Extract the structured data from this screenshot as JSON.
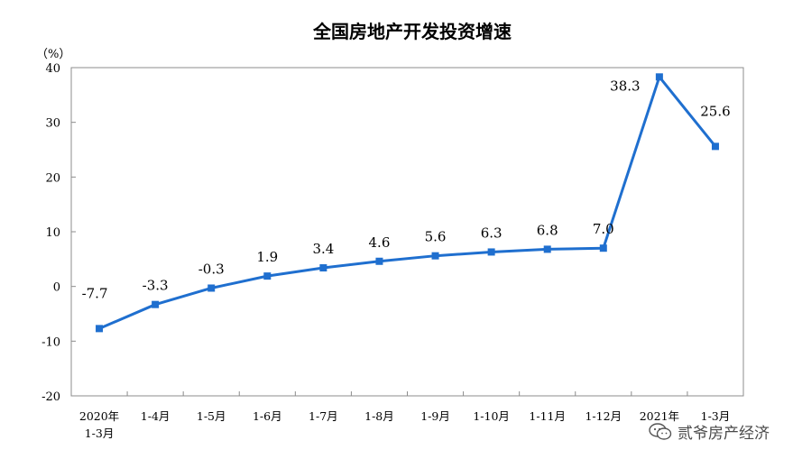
{
  "chart_data": {
    "type": "line",
    "title": "全国房地产开发投资增速",
    "unit": "（%）",
    "categories": [
      [
        "2020年",
        "1-3月"
      ],
      [
        "1-4月"
      ],
      [
        "1-5月"
      ],
      [
        "1-6月"
      ],
      [
        "1-7月"
      ],
      [
        "1-8月"
      ],
      [
        "1-9月"
      ],
      [
        "1-10月"
      ],
      [
        "1-11月"
      ],
      [
        "1-12月"
      ],
      [
        "2021年"
      ],
      [
        "1-3月"
      ]
    ],
    "values": [
      -7.7,
      -3.3,
      -0.3,
      1.9,
      3.4,
      4.6,
      5.6,
      6.3,
      6.8,
      7.0,
      38.3,
      25.6
    ],
    "data_labels": [
      "-7.7",
      "-3.3",
      "-0.3",
      "1.9",
      "3.4",
      "4.6",
      "5.6",
      "6.3",
      "6.8",
      "7.0",
      "38.3",
      "25.6"
    ],
    "ylim": [
      -20,
      40
    ],
    "yticks": [
      40,
      30,
      20,
      10,
      0,
      -10,
      -20
    ],
    "line_color": "#1F6FCF",
    "grid": false
  },
  "watermark": {
    "text": "贰爷房产经济",
    "icon": "wechat-icon"
  }
}
